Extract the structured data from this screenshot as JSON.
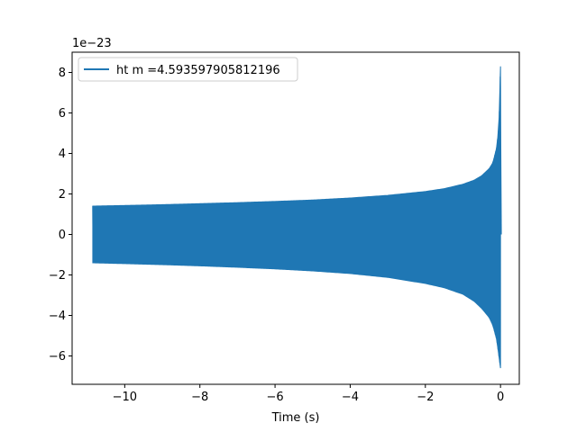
{
  "chart_data": {
    "type": "line",
    "title": "",
    "xlabel": "Time (s)",
    "ylabel": "",
    "offset_label": "1e−23",
    "xlim": [
      -11.4,
      0.5
    ],
    "ylim": [
      -7.4,
      9.0
    ],
    "x_ticks": [
      -10,
      -8,
      -6,
      -4,
      -2,
      0
    ],
    "x_tick_labels": [
      "−10",
      "−8",
      "−6",
      "−4",
      "−2",
      "0"
    ],
    "y_ticks": [
      -6,
      -4,
      -2,
      0,
      2,
      4,
      6,
      8
    ],
    "y_tick_labels": [
      "−6",
      "−4",
      "−2",
      "0",
      "2",
      "4",
      "6",
      "8"
    ],
    "grid": false,
    "legend": {
      "placement": "top-left"
    },
    "series": [
      {
        "name": "ht m =4.593597905812196",
        "color": "#1f77b4",
        "x_start": -10.85,
        "x_end": 0.02,
        "envelope": {
          "x": [
            -10.85,
            -10.0,
            -9.0,
            -8.0,
            -7.0,
            -6.0,
            -5.0,
            -4.0,
            -3.0,
            -2.0,
            -1.5,
            -1.0,
            -0.7,
            -0.5,
            -0.3,
            -0.2,
            -0.1,
            -0.05,
            -0.02,
            0.0
          ],
          "upper": [
            1.4,
            1.43,
            1.47,
            1.52,
            1.57,
            1.63,
            1.7,
            1.8,
            1.93,
            2.12,
            2.26,
            2.48,
            2.68,
            2.9,
            3.25,
            3.55,
            4.3,
            5.2,
            6.5,
            8.3
          ],
          "lower": [
            -1.4,
            -1.44,
            -1.49,
            -1.55,
            -1.62,
            -1.7,
            -1.8,
            -1.93,
            -2.12,
            -2.42,
            -2.63,
            -2.95,
            -3.3,
            -3.65,
            -4.1,
            -4.5,
            -5.2,
            -5.9,
            -6.3,
            -6.6
          ]
        }
      }
    ]
  }
}
